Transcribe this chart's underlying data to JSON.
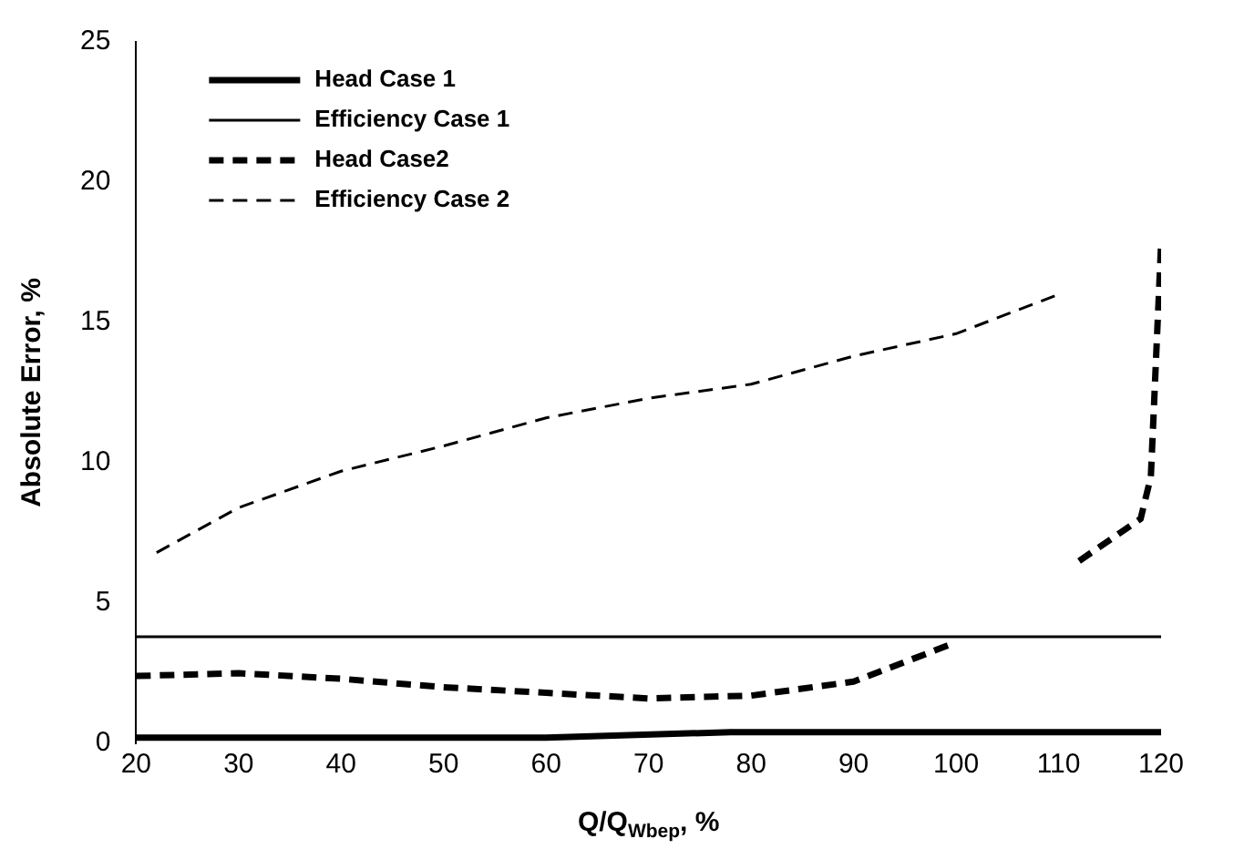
{
  "chart_data": {
    "type": "line",
    "xlabel": "Q/Q$_{Wbep}$, %",
    "ylabel": "Absolute Error, %",
    "xlim": [
      20,
      120
    ],
    "xticks": [
      20,
      30,
      40,
      50,
      60,
      70,
      80,
      90,
      100,
      110,
      120
    ],
    "ylim": [
      0,
      25
    ],
    "yticks": [
      0,
      5,
      10,
      15,
      20,
      25
    ],
    "grid": false,
    "legend": "top left",
    "marker": "none",
    "series": [
      {
        "name": "Head Case 1",
        "color": "#000000",
        "line_style": "solid",
        "x": [
          20,
          40,
          60,
          78,
          100,
          120
        ],
        "values": [
          0.2,
          0.2,
          0.2,
          0.4,
          0.4,
          0.4
        ]
      },
      {
        "name": "Efficiency Case 1",
        "color": "#000000",
        "line_style": "solid",
        "x": [
          20,
          60,
          100,
          120
        ],
        "values": [
          3.8,
          3.8,
          3.8,
          3.8
        ]
      },
      {
        "name": "Head Case2",
        "color": "#000000",
        "line_style": "dashed",
        "x": [
          20,
          30,
          40,
          50,
          60,
          70,
          80,
          90,
          100,
          101,
          112,
          118,
          119,
          120
        ],
        "values": [
          2.4,
          2.5,
          2.3,
          2,
          1.8,
          1.6,
          1.7,
          2.2,
          3.6,
          null,
          6.5,
          8,
          9.5,
          17.8
        ]
      },
      {
        "name": "Efficiency Case 2",
        "color": "#000000",
        "line_style": "dashed",
        "x": [
          22,
          30,
          40,
          50,
          60,
          70,
          80,
          90,
          100,
          110
        ],
        "values": [
          6.8,
          8.4,
          9.7,
          10.6,
          11.6,
          12.3,
          12.8,
          13.8,
          14.6,
          16
        ]
      }
    ]
  }
}
